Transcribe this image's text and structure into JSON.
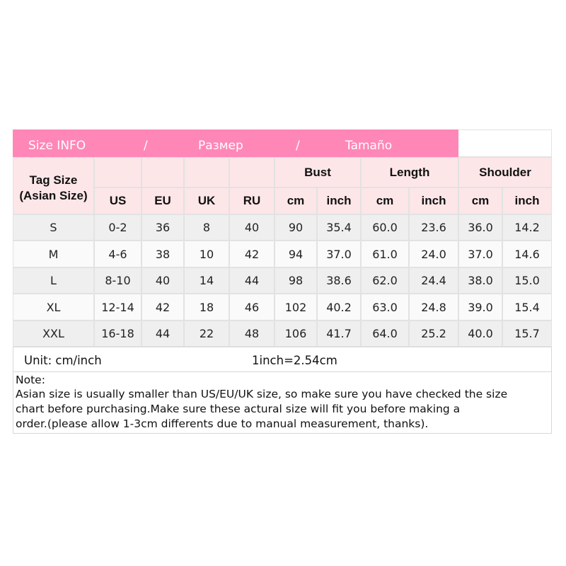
{
  "title": {
    "parts": [
      "Size INFO",
      "/",
      "Размер",
      "/",
      "Tamaño"
    ]
  },
  "header": {
    "tag_size": [
      "Tag Size",
      "(Asian Size)"
    ],
    "columns": [
      "US",
      "EU",
      "UK",
      "RU"
    ],
    "groups": [
      {
        "name": "Bust",
        "sub": [
          "cm",
          "inch"
        ]
      },
      {
        "name": "Length",
        "sub": [
          "cm",
          "inch"
        ]
      },
      {
        "name": "Shoulder",
        "sub": [
          "cm",
          "inch"
        ]
      }
    ]
  },
  "table": {
    "rows": [
      [
        "S",
        "0-2",
        "36",
        "8",
        "40",
        "90",
        "35.4",
        "60.0",
        "23.6",
        "36.0",
        "14.2"
      ],
      [
        "M",
        "4-6",
        "38",
        "10",
        "42",
        "94",
        "37.0",
        "61.0",
        "24.0",
        "37.0",
        "14.6"
      ],
      [
        "L",
        "8-10",
        "40",
        "14",
        "44",
        "98",
        "38.6",
        "62.0",
        "24.4",
        "38.0",
        "15.0"
      ],
      [
        "XL",
        "12-14",
        "42",
        "18",
        "46",
        "102",
        "40.2",
        "63.0",
        "24.8",
        "39.0",
        "15.4"
      ],
      [
        "XXL",
        "16-18",
        "44",
        "22",
        "48",
        "106",
        "41.7",
        "64.0",
        "25.2",
        "40.0",
        "15.7"
      ]
    ]
  },
  "unit": {
    "text": "Unit: cm/inch",
    "conversion": "1inch=2.54cm"
  },
  "note": {
    "title": "Note:",
    "lines": [
      "Asian size is usually smaller than US/EU/UK size, so make sure you have checked the size",
      "chart before purchasing.Make sure these actural size will fit you before making a",
      "order.(please allow 1-3cm differents due to manual measurement, thanks)."
    ]
  }
}
